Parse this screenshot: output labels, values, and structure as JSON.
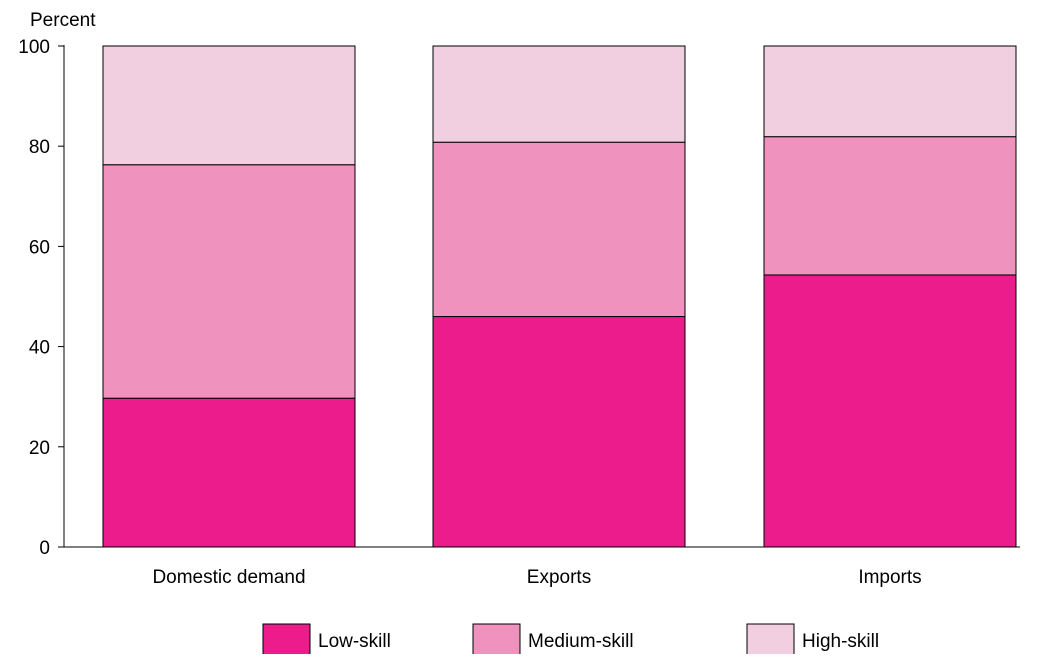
{
  "chart_data": {
    "type": "bar",
    "stacked": true,
    "ylabel": "Percent",
    "ylim": [
      0,
      100
    ],
    "yticks": [
      0,
      20,
      40,
      60,
      80,
      100
    ],
    "grid": false,
    "legend_position": "bottom",
    "categories": [
      "Domestic demand",
      "Exports",
      "Imports"
    ],
    "series": [
      {
        "name": "Low-skill",
        "color": "#ec1c8c",
        "values": [
          29.7,
          46.0,
          54.3
        ]
      },
      {
        "name": "Medium-skill",
        "color": "#ef92bd",
        "values": [
          46.6,
          34.8,
          27.6
        ]
      },
      {
        "name": "High-skill",
        "color": "#f2cfe0",
        "values": [
          23.7,
          19.2,
          18.1
        ]
      }
    ]
  }
}
